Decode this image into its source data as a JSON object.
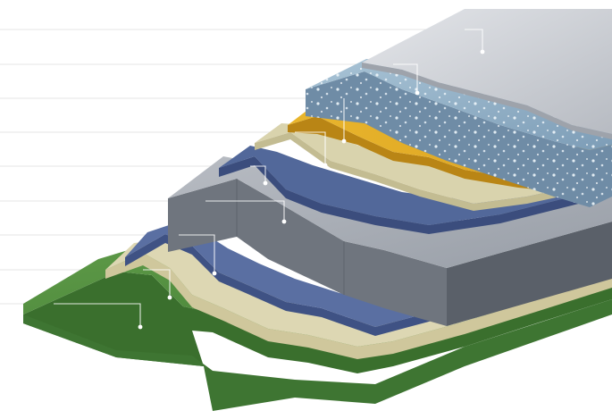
{
  "diagram": {
    "type": "exploded layered cross-section",
    "labels": [],
    "layers": [
      {
        "name": "top-sheet",
        "color": "#c9ccd1"
      },
      {
        "name": "porous-insulation-layer",
        "color": "#8fb0c8"
      },
      {
        "name": "yellow-membrane",
        "color": "#e0ad2a"
      },
      {
        "name": "beige-sheet-upper",
        "color": "#d9d3ad"
      },
      {
        "name": "blue-membrane-upper",
        "color": "#52689a"
      },
      {
        "name": "grey-board",
        "color": "#a3a8b0"
      },
      {
        "name": "blue-membrane-lower",
        "color": "#5a6fa2"
      },
      {
        "name": "beige-sheet-lower",
        "color": "#ddd7b3"
      },
      {
        "name": "green-base",
        "color": "#4f8a3d"
      }
    ],
    "callout_count": 9
  }
}
